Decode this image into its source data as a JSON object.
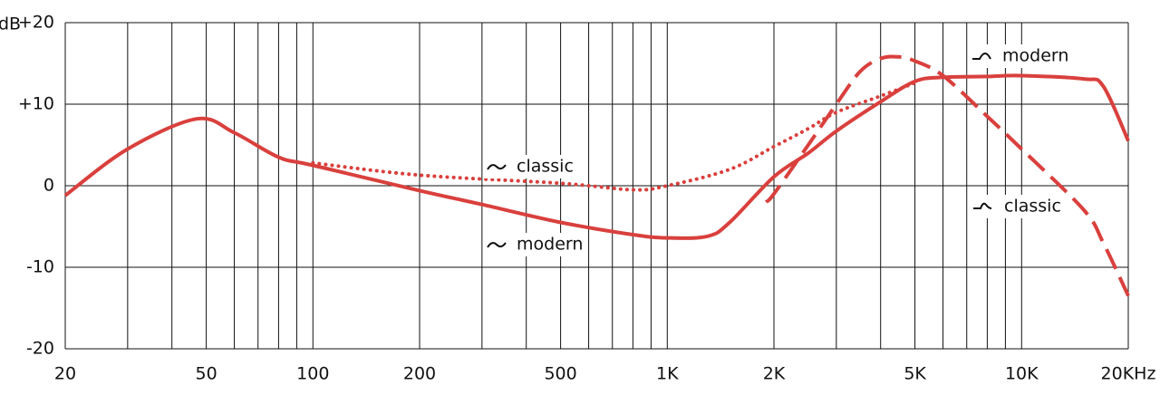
{
  "chart_data": {
    "type": "line",
    "y_label": "dB",
    "xscale": "log",
    "xlim": [
      20,
      20000
    ],
    "ylim": [
      -20,
      20
    ],
    "grid": true,
    "xticks": [
      20,
      {
        "value": 30,
        "label": null
      },
      {
        "value": 40,
        "label": null
      },
      50,
      {
        "value": 60,
        "label": null
      },
      {
        "value": 70,
        "label": null
      },
      {
        "value": 80,
        "label": null
      },
      {
        "value": 90,
        "label": null
      },
      100,
      200,
      {
        "value": 300,
        "label": null
      },
      {
        "value": 400,
        "label": null
      },
      500,
      {
        "value": 600,
        "label": null
      },
      {
        "value": 700,
        "label": null
      },
      {
        "value": 800,
        "label": null
      },
      {
        "value": 900,
        "label": null
      },
      {
        "value": 1000,
        "label": "1K"
      },
      {
        "value": 2000,
        "label": "2K"
      },
      {
        "value": 3000,
        "label": null
      },
      {
        "value": 4000,
        "label": null
      },
      {
        "value": 5000,
        "label": "5K"
      },
      {
        "value": 6000,
        "label": null
      },
      {
        "value": 7000,
        "label": null
      },
      {
        "value": 8000,
        "label": null
      },
      {
        "value": 9000,
        "label": null
      },
      {
        "value": 10000,
        "label": "10K"
      },
      {
        "value": 20000,
        "label": "20KHz"
      }
    ],
    "yticks": [
      {
        "value": -20,
        "label": "-20"
      },
      -10,
      0,
      {
        "value": 10,
        "label": "+10"
      },
      {
        "value": 20,
        "label": "+20"
      }
    ],
    "series": [
      {
        "color": "#d9403d",
        "style": "solid",
        "x": [
          20,
          30,
          47,
          60,
          80,
          100,
          200,
          300,
          500,
          800,
          1000,
          1300,
          1500,
          2000,
          2500,
          3000,
          4000,
          5000,
          6000,
          8000,
          10000,
          15000,
          17000,
          20000
        ],
        "values": [
          -1.2,
          4.5,
          8.2,
          6.5,
          3.5,
          2.5,
          -0.6,
          -2.3,
          -4.5,
          -6,
          -6.4,
          -6.2,
          -4.5,
          1.1,
          4,
          6.7,
          10.3,
          12.8,
          13.3,
          13.4,
          13.5,
          13.1,
          12.2,
          5.5
        ]
      },
      {
        "color": "#d9403d",
        "style": "dotted",
        "x": [
          100,
          200,
          500,
          800,
          1000,
          1500,
          2000,
          2500,
          3000,
          4000,
          5000
        ],
        "values": [
          2.8,
          1.3,
          0.3,
          -0.5,
          0,
          2,
          4.8,
          7,
          9,
          11,
          12.6
        ]
      },
      {
        "color": "#d9403d",
        "style": "dashed",
        "x": [
          1900,
          2000,
          2500,
          3000,
          3500,
          4000,
          4500,
          5000,
          6000,
          8000,
          10000,
          15000,
          17000,
          20000
        ],
        "values": [
          -2,
          -1,
          5,
          10,
          14,
          15.6,
          15.8,
          15.3,
          13.5,
          8.5,
          4.5,
          -3,
          -7,
          -13.5
        ]
      }
    ],
    "annotations": [
      "classic",
      "modern",
      "modern",
      "classic"
    ]
  }
}
